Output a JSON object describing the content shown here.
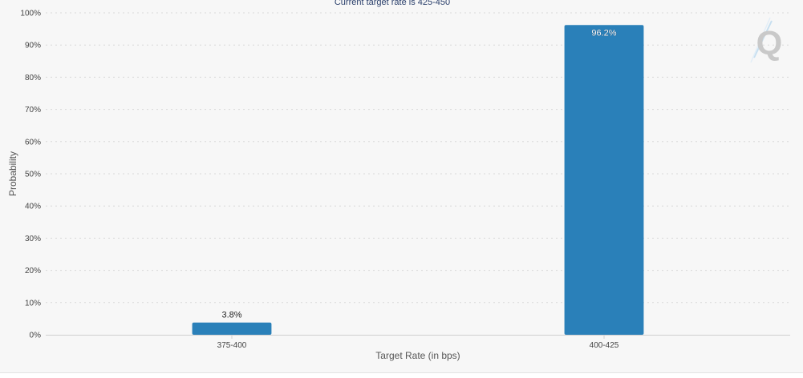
{
  "chart_data": {
    "type": "bar",
    "subtitle": "Current target rate is 425-450",
    "xlabel": "Target Rate (in bps)",
    "ylabel": "Probability",
    "categories": [
      "375-400",
      "400-425"
    ],
    "values": [
      3.8,
      96.2
    ],
    "value_labels": [
      "3.8%",
      "96.2%"
    ],
    "ylim": [
      0,
      100
    ],
    "yticks": [
      "0%",
      "10%",
      "20%",
      "30%",
      "40%",
      "50%",
      "60%",
      "70%",
      "80%",
      "90%",
      "100%"
    ],
    "grid": true,
    "bar_color": "#2a80b9"
  },
  "watermark": {
    "letter": "Q",
    "icon": "quikstrike-logo-icon"
  }
}
